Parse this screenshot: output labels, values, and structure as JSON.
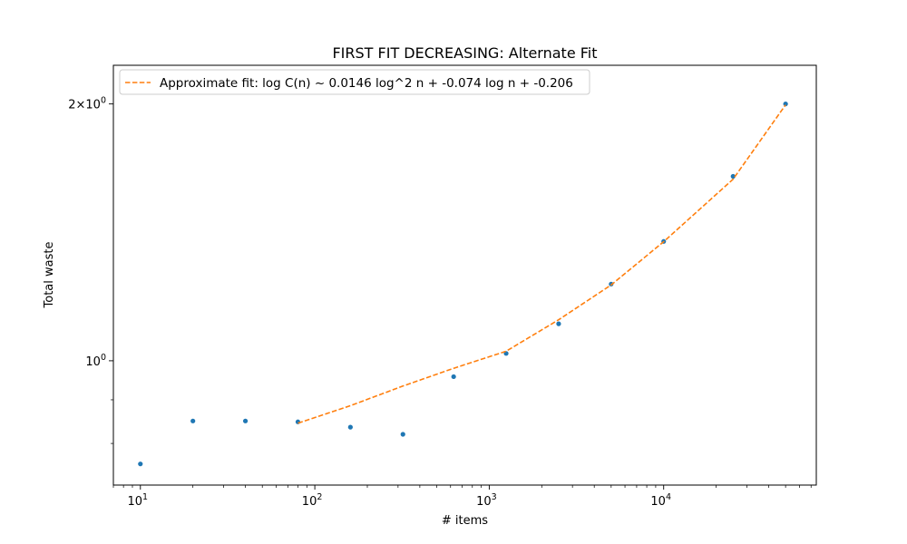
{
  "chart_data": {
    "type": "scatter",
    "title": "FIRST FIT DECREASING: Alternate Fit",
    "xlabel": "# items",
    "ylabel": "Total waste",
    "xscale": "log",
    "yscale": "log",
    "xlim": [
      7,
      75000
    ],
    "ylim": [
      0.715,
      2.22
    ],
    "grid": false,
    "legend_position": "top-left",
    "x_ticks": [
      {
        "value": 10,
        "base": "10",
        "exp": "1"
      },
      {
        "value": 100,
        "base": "10",
        "exp": "2"
      },
      {
        "value": 1000,
        "base": "10",
        "exp": "3"
      },
      {
        "value": 10000,
        "base": "10",
        "exp": "4"
      }
    ],
    "y_ticks": [
      {
        "value": 1.0,
        "label": "10",
        "exp": "0",
        "prefix": ""
      },
      {
        "value": 2.0,
        "label": "10",
        "exp": "0",
        "prefix": "2×"
      }
    ],
    "y_minor_ticks": [
      0.8,
      0.9
    ],
    "series": [
      {
        "kind": "points",
        "color": "#1f77b4",
        "x": [
          10,
          20,
          40,
          80,
          160,
          320,
          625,
          1250,
          2500,
          5000,
          10000,
          25000,
          50000
        ],
        "y": [
          0.757,
          0.85,
          0.85,
          0.848,
          0.836,
          0.82,
          0.958,
          1.02,
          1.105,
          1.23,
          1.38,
          1.645,
          2.0
        ]
      },
      {
        "kind": "line",
        "name": "Approximate fit: log C(n) ~ 0.0146 log^2 n + -0.074 log n + -0.206",
        "color": "#ff7f0e",
        "dashed": true,
        "x": [
          80,
          160,
          320,
          625,
          1250,
          2500,
          5000,
          10000,
          25000,
          50000
        ],
        "y": [
          0.845,
          0.886,
          0.934,
          0.98,
          1.026,
          1.117,
          1.227,
          1.379,
          1.632,
          1.995
        ]
      }
    ]
  }
}
